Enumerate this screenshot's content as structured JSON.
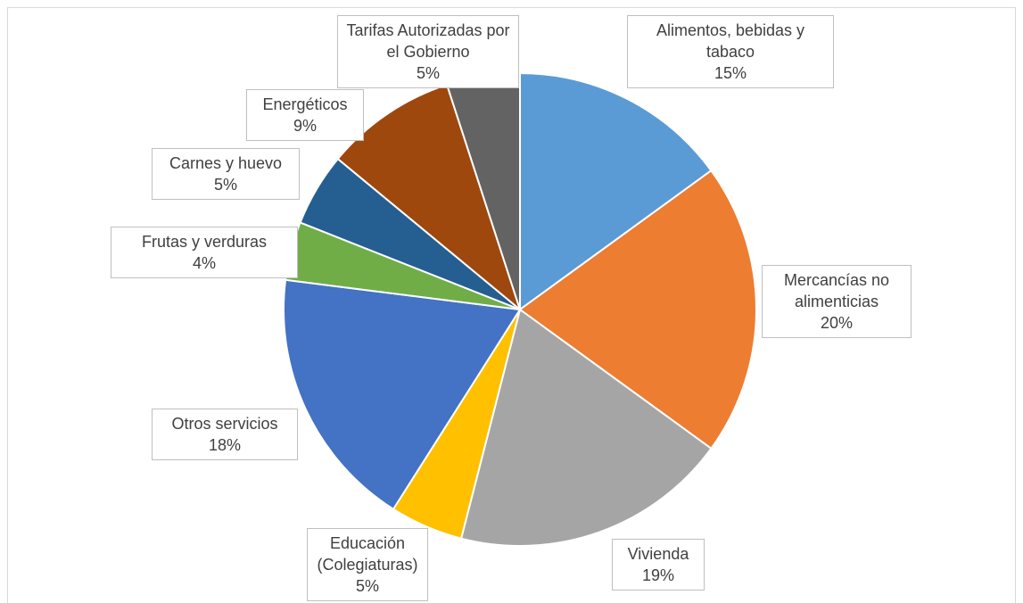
{
  "chart_data": {
    "type": "pie",
    "categories": [
      "Alimentos, bebidas y tabaco",
      "Mercancías no alimenticias",
      "Vivienda",
      "Educación (Colegiaturas)",
      "Otros servicios",
      "Frutas y verduras",
      "Carnes y huevo",
      "Energéticos",
      "Tarifas Autorizadas por el Gobierno"
    ],
    "values": [
      15,
      20,
      19,
      5,
      18,
      4,
      5,
      9,
      5
    ],
    "value_labels": [
      "15%",
      "20%",
      "19%",
      "5%",
      "18%",
      "4%",
      "5%",
      "9%",
      "5%"
    ],
    "colors": [
      "#5b9bd5",
      "#ed7d31",
      "#a5a5a5",
      "#ffc000",
      "#4472c4",
      "#70ad47",
      "#255e91",
      "#9e480e",
      "#636363"
    ]
  }
}
